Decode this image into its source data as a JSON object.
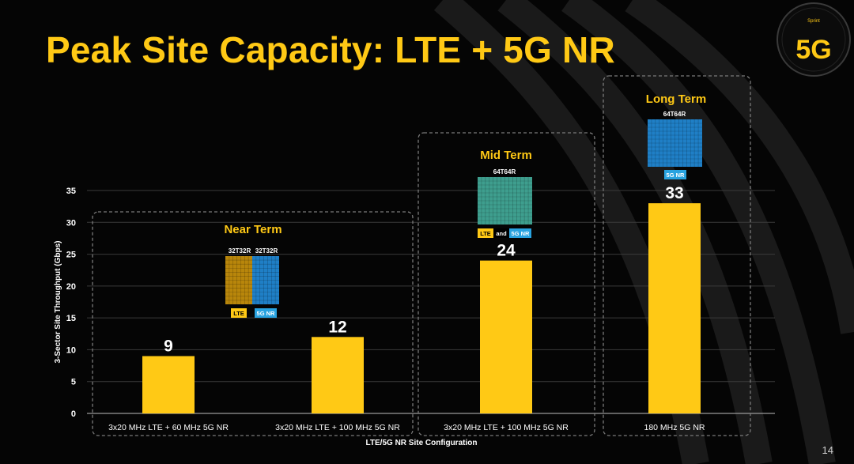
{
  "slide": {
    "title": "Peak Site Capacity: LTE + 5G NR",
    "page_number": "14",
    "logo": {
      "brand_text": "Sprint",
      "badge_text": "5G"
    }
  },
  "colors": {
    "accent": "#FFC915",
    "background": "#050505",
    "lte_panel": "#B8860B",
    "nr_panel": "#1F7FC6",
    "combined_panel": "#3E9E8E",
    "lte_tag": "#FFC915",
    "nr_tag": "#29A3E0"
  },
  "chart_data": {
    "type": "bar",
    "ylabel": "3-Sector Site Throughput (Gbps)",
    "xlabel": "LTE/5G NR Site Configuration",
    "ylim": [
      0,
      35
    ],
    "yticks": [
      0,
      5,
      10,
      15,
      20,
      25,
      30,
      35
    ],
    "grid": true,
    "categories": [
      "3x20 MHz LTE + 60 MHz 5G NR",
      "3x20 MHz LTE + 100 MHz 5G NR",
      "3x20 MHz LTE + 100 MHz 5G NR",
      "180 MHz 5G NR"
    ],
    "values": [
      9,
      12,
      24,
      33
    ],
    "data_labels": [
      "9",
      "12",
      "24",
      "33"
    ],
    "groups": [
      {
        "label": "Near Term",
        "antennas": [
          {
            "label": "32T32R",
            "tag": "LTE",
            "kind": "lte"
          },
          {
            "label": "32T32R",
            "tag": "5G NR",
            "kind": "nr"
          }
        ]
      },
      {
        "label": "Mid Term",
        "antennas": [
          {
            "label": "64T64R",
            "tag": "LTE and 5G NR",
            "tag_parts": [
              "LTE",
              "and",
              "5G NR"
            ],
            "kind": "combined"
          }
        ]
      },
      {
        "label": "Long Term",
        "antennas": [
          {
            "label": "64T64R",
            "tag": "5G NR",
            "kind": "nr"
          }
        ]
      }
    ]
  }
}
